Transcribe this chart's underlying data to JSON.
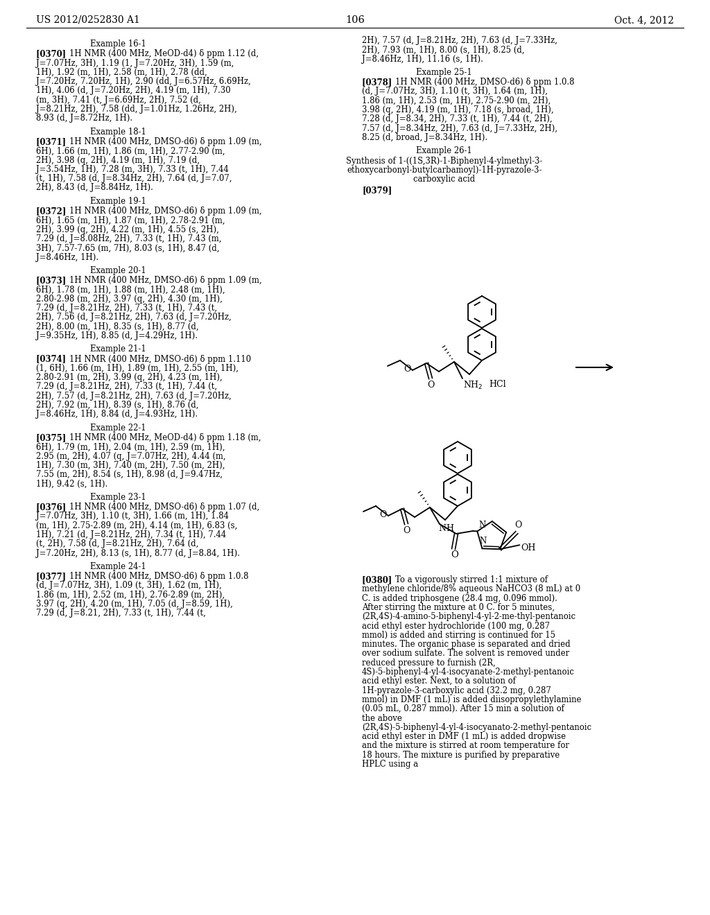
{
  "page_num": "106",
  "header_left": "US 2012/0252830 A1",
  "header_right": "Oct. 4, 2012",
  "left_col": [
    {
      "type": "heading",
      "text": "Example 16-1"
    },
    {
      "type": "para",
      "tag": "[0370]",
      "text": "1H NMR (400 MHz, MeOD-d4) δ ppm 1.12 (d, J=7.07Hz, 3H), 1.19 (1, J=7.20Hz, 3H), 1.59 (m, 1H), 1.92 (m, 1H), 2.58 (m, 1H), 2.78 (dd, J=7.20Hz, 7.20Hz, 1H), 2.90 (dd, J=6.57Hz, 6.69Hz, 1H), 4.06 (d, J=7.20Hz, 2H), 4.19 (m, 1H), 7.30 (m, 3H), 7.41 (t, J=6.69Hz, 2H), 7.52 (d, J=8.21Hz, 2H), 7.58 (dd, J=1.01Hz, 1.26Hz, 2H), 8.93 (d, J=8.72Hz, 1H)."
    },
    {
      "type": "heading",
      "text": "Example 18-1"
    },
    {
      "type": "para",
      "tag": "[0371]",
      "text": "1H NMR (400 MHz, DMSO-d6) δ ppm 1.09 (m, 6H), 1.66 (m, 1H), 1.86 (m, 1H), 2.77-2.90 (m, 2H), 3.98 (q, 2H), 4.19 (m, 1H), 7.19 (d, J=3.54Hz, 1H), 7.28 (m, 3H), 7.33 (t, 1H), 7.44 (t, 1H), 7.58 (d, J=8.34Hz, 2H), 7.64 (d, J=7.07, 2H), 8.43 (d, J=8.84Hz, 1H)."
    },
    {
      "type": "heading",
      "text": "Example 19-1"
    },
    {
      "type": "para",
      "tag": "[0372]",
      "text": "1H NMR (400 MHz, DMSO-d6) δ ppm 1.09 (m, 6H), 1.65 (m, 1H), 1.87 (m, 1H), 2.78-2.91 (m, 2H), 3.99 (q, 2H), 4.22 (m, 1H), 4.55 (s, 2H), 7.29 (d, J=8.08Hz, 2H), 7.33 (t, 1H), 7.43 (m, 3H), 7.57-7.65 (m, 7H), 8.03 (s, 1H), 8.47 (d, J=8.46Hz, 1H)."
    },
    {
      "type": "heading",
      "text": "Example 20-1"
    },
    {
      "type": "para",
      "tag": "[0373]",
      "text": "1H NMR (400 MHz, DMSO-d6) δ ppm 1.09 (m, 6H), 1.78 (m, 1H), 1.88 (m, 1H), 2.48 (m, 1H), 2.80-2.98 (m, 2H), 3.97 (q, 2H), 4.30 (m, 1H), 7.29 (d, J=8.21Hz, 2H), 7.33 (t, 1H), 7.43 (t, 2H), 7.56 (d, J=8.21Hz, 2H), 7.63 (d, J=7.20Hz, 2H), 8.00 (m, 1H), 8.35 (s, 1H), 8.77 (d, J=9.35Hz, 1H), 8.85 (d, J=4.29Hz, 1H)."
    },
    {
      "type": "heading",
      "text": "Example 21-1"
    },
    {
      "type": "para",
      "tag": "[0374]",
      "text": "1H NMR (400 MHz, DMSO-d6) δ ppm 1.110 (1, 6H), 1.66 (m, 1H), 1.89 (m, 1H), 2.55 (m, 1H), 2.80-2.91 (m, 2H), 3.99 (q, 2H), 4.23 (m, 1H), 7.29 (d, J=8.21Hz, 2H), 7.33 (t, 1H), 7.44 (t, 2H), 7.57 (d, J=8.21Hz, 2H), 7.63 (d, J=7.20Hz, 2H), 7.92 (m, 1H), 8.39 (s, 1H), 8.76 (d, J=8.46Hz, 1H), 8.84 (d, J=4.93Hz, 1H)."
    },
    {
      "type": "heading",
      "text": "Example 22-1"
    },
    {
      "type": "para",
      "tag": "[0375]",
      "text": "1H NMR (400 MHz, MeOD-d4) δ ppm 1.18 (m, 6H), 1.79 (m, 1H), 2.04 (m, 1H), 2.59 (m, 1H), 2.95 (m, 2H), 4.07 (q, J=7.07Hz, 2H), 4.44 (m, 1H), 7.30 (m, 3H), 7.40 (m, 2H), 7.50 (m, 2H), 7.55 (m, 2H), 8.54 (s, 1H), 8.98 (d, J=9.47Hz, 1H), 9.42 (s, 1H)."
    },
    {
      "type": "heading",
      "text": "Example 23-1"
    },
    {
      "type": "para",
      "tag": "[0376]",
      "text": "1H NMR (400 MHz, DMSO-d6) δ ppm 1.07 (d, J=7.07Hz, 3H), 1.10 (t, 3H), 1.66 (m, 1H), 1.84 (m, 1H), 2.75-2.89 (m, 2H), 4.14 (m, 1H), 6.83 (s, 1H), 7.21 (d, J=8.21Hz, 2H), 7.34 (t, 1H), 7.44 (t, 2H), 7.58 (d, J=8.21Hz, 2H), 7.64 (d, J=7.20Hz, 2H), 8.13 (s, 1H), 8.77 (d, J=8.84, 1H)."
    },
    {
      "type": "heading",
      "text": "Example 24-1"
    },
    {
      "type": "para",
      "tag": "[0377]",
      "text": "1H NMR (400 MHz, DMSO-d6) δ ppm 1.0.8 (d, J=7.07Hz, 3H), 1.09 (t, 3H), 1.62 (m, 1H), 1.86 (m, 1H), 2.52 (m, 1H), 2.76-2.89 (m, 2H), 3.97 (q, 2H), 4.20 (m, 1H), 7.05 (d, J=8.59, 1H), 7.29 (d, J=8.21, 2H), 7.33 (t, 1H), 7.44 (t,"
    }
  ],
  "right_col_pre": [
    {
      "type": "continuation",
      "text": "2H), 7.57 (d, J=8.21Hz, 2H), 7.63 (d, J=7.33Hz, 2H), 7.93 (m, 1H), 8.00 (s, 1H), 8.25 (d, J=8.46Hz, 1H), 11.16 (s, 1H)."
    },
    {
      "type": "heading",
      "text": "Example 25-1"
    },
    {
      "type": "para",
      "tag": "[0378]",
      "text": "1H NMR (400 MHz, DMSO-d6) δ ppm 1.0.8 (d, J=7.07Hz, 3H), 1.10 (t, 3H), 1.64 (m, 1H), 1.86 (m, 1H), 2.53 (m, 1H), 2.75-2.90 (m, 2H), 3.98 (q, 2H), 4.19 (m, 1H), 7.18 (s, broad, 1H), 7.28 (d, J=8.34, 2H), 7.33 (t, 1H), 7.44 (t, 2H), 7.57 (d, J=8.34Hz, 2H), 7.63 (d, J=7.33Hz, 2H), 8.25 (d, broad, J=8.34Hz, 1H)."
    },
    {
      "type": "heading",
      "text": "Example 26-1"
    },
    {
      "type": "subheading",
      "lines": [
        "Synthesis of 1-((1S,3R)-1-Biphenyl-4-ylmethyl-3-",
        "ethoxycarbonyl-butylcarbamoyl)-1H-pyrazole-3-",
        "carboxylic acid"
      ]
    },
    {
      "type": "tag_only",
      "tag": "[0379]"
    }
  ],
  "right_col_post": [
    {
      "type": "para",
      "tag": "[0380]",
      "text": "To a vigorously stirred 1:1 mixture of methylene chloride/8% aqueous NaHCO3 (8 mL) at 0 C. is added triphosgene (28.4 mg, 0.096 mmol). After stirring the mixture at 0 C. for 5 minutes, (2R,4S)-4-amino-5-biphenyl-4-yl-2-me-thyl-pentanoic acid ethyl ester hydrochloride (100 mg, 0.287 mmol) is added and stirring is continued for 15 minutes. The organic phase is separated and dried over sodium sulfate. The solvent is removed under reduced pressure to furnish (2R, 4S)-5-biphenyl-4-yl-4-isocyanate-2-methyl-pentanoic acid ethyl ester. Next, to a solution of 1H-pyrazole-3-carboxylic acid (32.2 mg, 0.287 mmol) in DMF (1 mL) is added diisopropylethylamine (0.05 mL, 0.287 mmol). After 15 min a solution of the above (2R,4S)-5-biphenyl-4-yl-4-isocyanato-2-methyl-pentanoic acid ethyl ester in DMF (1 mL) is added dropwise and the mixture is stirred at room temperature for 18 hours. The mixture is purified by preparative HPLC using a"
    }
  ]
}
